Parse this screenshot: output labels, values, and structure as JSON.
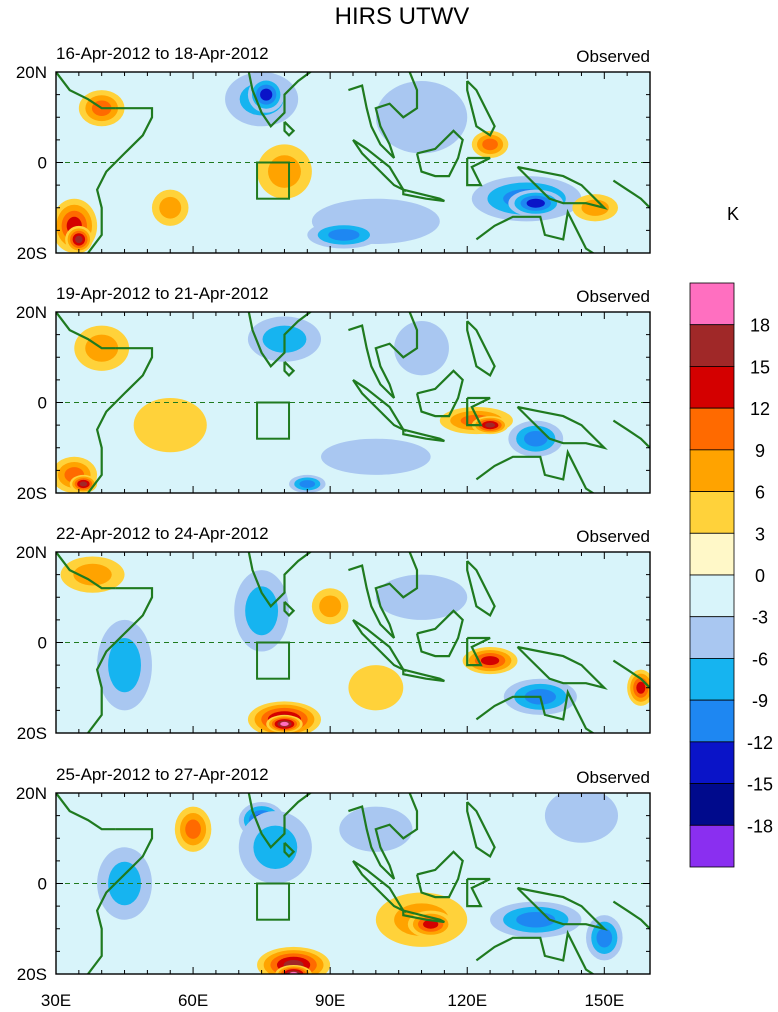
{
  "chart_data": {
    "type": "heatmap",
    "title": "HIRS UTWV",
    "units": "K",
    "x_ticks": [
      "30E",
      "60E",
      "90E",
      "120E",
      "150E"
    ],
    "x_tick_values": [
      30,
      60,
      90,
      120,
      150
    ],
    "x_range": [
      30,
      160
    ],
    "y_ticks": [
      "20N",
      "0",
      "20S"
    ],
    "y_tick_values": [
      20,
      0,
      -20
    ],
    "y_range": [
      -20,
      20
    ],
    "box_region": {
      "lon": [
        74,
        81
      ],
      "lat": [
        -8,
        0
      ]
    },
    "panels": [
      {
        "period": "16-Apr-2012 to 18-Apr-2012",
        "label": "Observed"
      },
      {
        "period": "19-Apr-2012 to 21-Apr-2012",
        "label": "Observed"
      },
      {
        "period": "22-Apr-2012 to 24-Apr-2012",
        "label": "Observed"
      },
      {
        "period": "25-Apr-2012 to 27-Apr-2012",
        "label": "Observed"
      }
    ],
    "colorbar": {
      "labels": [
        "18",
        "15",
        "12",
        "9",
        "6",
        "3",
        "0",
        "-3",
        "-6",
        "-9",
        "-12",
        "-15",
        "-18"
      ],
      "colors": [
        "#ff6fc0",
        "#a02828",
        "#d40000",
        "#ff6a00",
        "#ffa300",
        "#ffd23a",
        "#fff8c8",
        "#d8f4fa",
        "#a9c7f1",
        "#16b4f0",
        "#1e87f2",
        "#0a14c8",
        "#000a8c",
        "#8a2ff0"
      ]
    }
  }
}
